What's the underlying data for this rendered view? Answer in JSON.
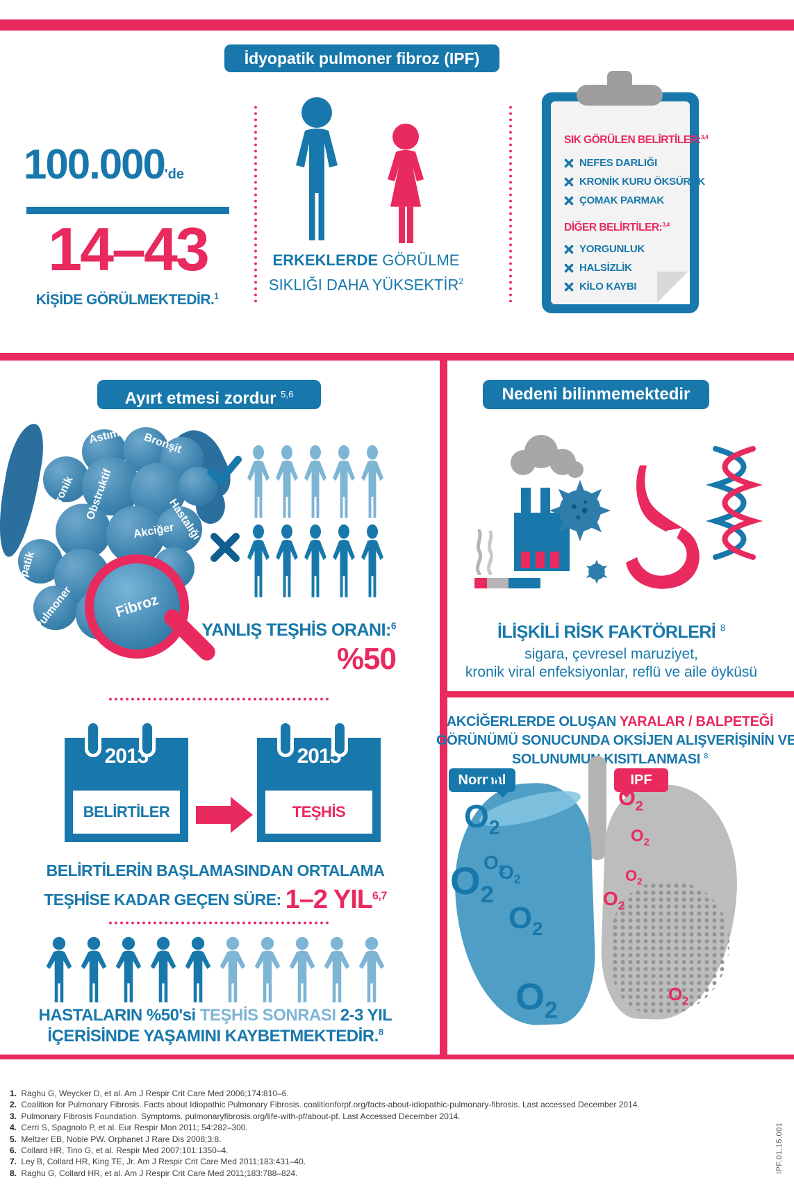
{
  "title_banner": "İdyopatik pulmoner fibroz (IPF)",
  "incidence": {
    "number": "100.000",
    "suffix": "'de",
    "range": "14–43",
    "caption": "KİŞİDE GÖRÜLMEKTEDİR.",
    "caption_sup": "1"
  },
  "gender": {
    "line1_bold": "ERKEKLERDE",
    "line1_rest": " GÖRÜLME",
    "line2": "SIKLIĞI DAHA YÜKSEKTİR",
    "sup": "2"
  },
  "symptoms": {
    "common_heading": "SIK GÖRÜLEN BELİRTİLER:",
    "common_sup": "3,4",
    "common_items": [
      "NEFES DARLIĞI",
      "KRONİK KURU ÖKSÜRÜK",
      "ÇOMAK PARMAK"
    ],
    "other_heading": "DİĞER BELİRTİLER:",
    "other_sup": "3,4",
    "other_items": [
      "YORGUNLUK",
      "HALSİZLİK",
      "KİLO KAYBI"
    ]
  },
  "differential": {
    "banner": "Ayırt etmesi zordur",
    "banner_sup": "5,6",
    "bubble_words": [
      "Astım",
      "Bronşit",
      "Kronik",
      "Obstruktif",
      "Akciğer",
      "Hastalığı",
      "İdyopatik",
      "Pulmoner"
    ],
    "magnifier_word": "Fibroz",
    "check_count": 5,
    "x_count": 5,
    "misdiagnosis_label": "YANLIŞ TEŞHİS ORANI:",
    "misdiagnosis_sup": "6",
    "misdiagnosis_value": "%50"
  },
  "timeline": {
    "cal1_year": "2013",
    "cal1_label": "BELİRTİLER",
    "cal2_year": "2015",
    "cal2_label": "TEŞHİS",
    "line1": "BELİRTİLERİN BAŞLAMASINDAN ORTALAMA",
    "line2": "TEŞHİSE KADAR GEÇEN SÜRE:",
    "duration": "1–2 YIL",
    "duration_sup": "6,7"
  },
  "survival": {
    "dark_count": 5,
    "light_count": 5,
    "line1_a": "HASTALARIN %50'si ",
    "line1_b": "TEŞHİS SONRASI",
    "line1_c": " 2-3 YIL",
    "line2": "İÇERİSİNDE YAŞAMINI KAYBETMEKTEDİR.",
    "sup": "8"
  },
  "cause": {
    "banner": "Nedeni bilinmemektedir",
    "risk_heading": "İLİŞKİLİ RİSK FAKTÖRLERİ",
    "risk_sup": "8",
    "risk_line1": "sigara, çevresel maruziyet,",
    "risk_line2": "kronik viral enfeksiyonlar, reflü ve aile öyküsü"
  },
  "lungs": {
    "line1_a": "AKCİĞERLERDE OLUŞAN ",
    "line1_b": "YARALAR / BALPETEĞİ",
    "line2": "GÖRÜNÜMÜ SONUCUNDA OKSİJEN ALIŞVERİŞİNİN VE",
    "line3": "SOLUNUMUN KISITLANMASI",
    "line3_sup": "8",
    "tag_normal": "Normal",
    "tag_ipf": "IPF",
    "o2": "O",
    "o2_sub": "2"
  },
  "references": [
    {
      "num": "1.",
      "text": "Raghu G, Weycker D, et al. Am J Respir Crit Care Med 2006;174:810–6."
    },
    {
      "num": "2.",
      "text": "Coalition for Pulmonary Fibrosis. Facts about Idiopathic Pulmonary Fibrosis. coalitionforpf.org/facts-about-idiopathic-pulmonary-fibrosis. Last accessed December 2014."
    },
    {
      "num": "3.",
      "text": "Pulmonary Fibrosis Foundation. Symptoms. pulmonaryfibrosis.org/life-with-pf/about-pf. Last Accessed December 2014."
    },
    {
      "num": "4.",
      "text": "Cerri S, Spagnolo P, et al. Eur Respir Mon 2011; 54:282–300."
    },
    {
      "num": "5.",
      "text": "Meltzer EB, Noble PW. Orphanet J Rare Dis 2008;3:8."
    },
    {
      "num": "6.",
      "text": "Collard HR, Tino G, et al. Respir Med 2007;101:1350–4."
    },
    {
      "num": "7.",
      "text": "Ley B, Collard HR, King TE, Jr. Am J Respir Crit Care Med 2011;183:431–40."
    },
    {
      "num": "8.",
      "text": "Raghu G, Collard HR, et al. Am J Respir Crit Care Med 2011;183:788–824."
    }
  ],
  "code": "IPF.01.15.001",
  "colors": {
    "blue": "#1878ab",
    "light_blue": "#7eb5d5",
    "pink": "#e82a5e",
    "gray": "#9d9d9d"
  }
}
